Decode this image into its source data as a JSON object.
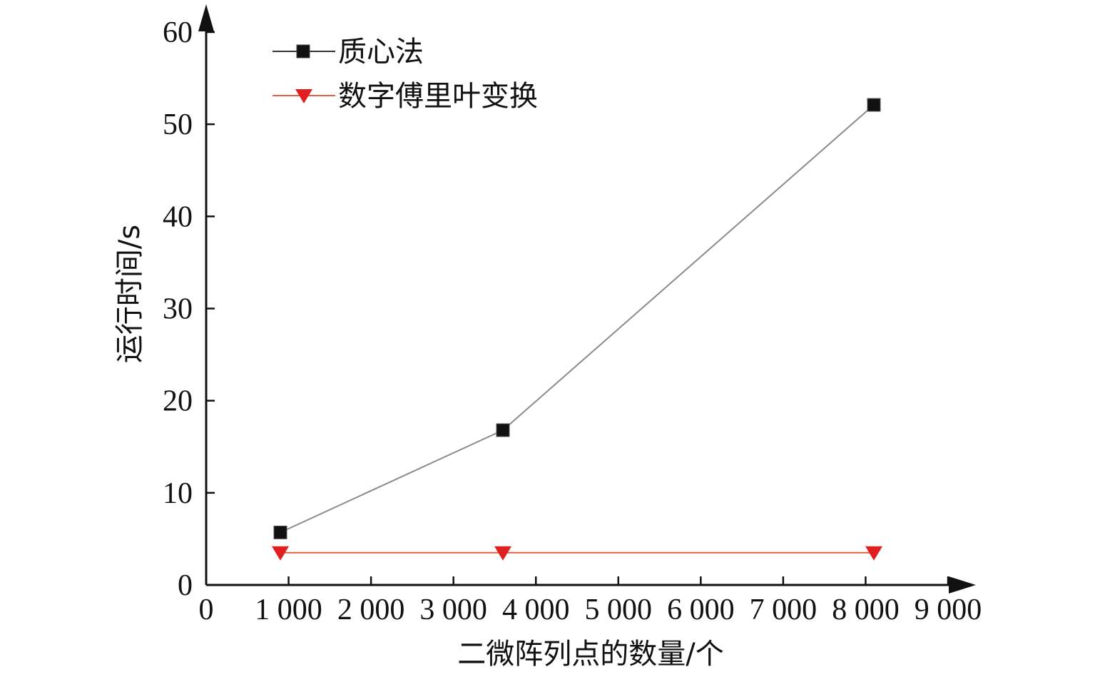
{
  "chart_data": {
    "type": "line",
    "xlabel": "二微阵列点的数量/个",
    "ylabel": "运行时间/s",
    "xlim": [
      0,
      9000
    ],
    "ylim": [
      0,
      60
    ],
    "xticks": [
      0,
      1000,
      2000,
      3000,
      4000,
      5000,
      6000,
      7000,
      8000,
      9000
    ],
    "xtick_labels": [
      "0",
      "1 000",
      "2 000",
      "3 000",
      "4 000",
      "5 000",
      "6 000",
      "7 000",
      "8 000",
      "9 000"
    ],
    "yticks": [
      0,
      10,
      20,
      30,
      40,
      50,
      60
    ],
    "ytick_labels": [
      "0",
      "10",
      "20",
      "30",
      "40",
      "50",
      "60"
    ],
    "grid": false,
    "legend_position": "top-left",
    "series": [
      {
        "name": "质心法",
        "marker": "square",
        "color": "#111111",
        "line_color": "#8a8a8a",
        "x": [
          900,
          3600,
          8100
        ],
        "y": [
          5.7,
          16.8,
          52.1
        ]
      },
      {
        "name": "数字傅里叶变换",
        "marker": "triangle-down",
        "color": "#e02020",
        "line_color": "#e06040",
        "x": [
          900,
          3600,
          8100
        ],
        "y": [
          3.5,
          3.5,
          3.5
        ]
      }
    ]
  }
}
